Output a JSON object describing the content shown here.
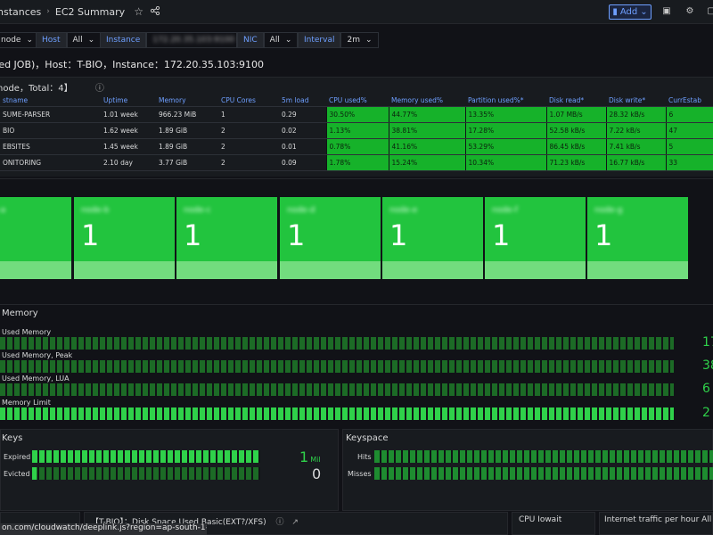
{
  "topbar": {
    "crumb_parent": "nstances",
    "crumb_current": "EC2 Summary",
    "add_label": "Add"
  },
  "variables": {
    "node_value": "node",
    "host_label": "Host",
    "host_value": "All",
    "instance_label": "Instance",
    "instance_value": "172.20.35.103:9100",
    "nic_label": "NIC",
    "nic_value": "All",
    "interval_label": "Interval",
    "interval_value": "2m"
  },
  "subtitle": "ted JOB)，Host：T-BIO，Instance：172.20.35.103:9100",
  "nodes_panel": {
    "title": "node，Total：4】",
    "columns": [
      "stname",
      "Uptime",
      "Memory",
      "CPU Cores",
      "5m load",
      "CPU used%",
      "Memory used%",
      "Partition used%*",
      "Disk read*",
      "Disk write*",
      "CurrEstab"
    ],
    "rows": [
      [
        "SUME-PARSER",
        "1.01 week",
        "966.23 MiB",
        "1",
        "0.29",
        "30.50%",
        "44.77%",
        "13.35%",
        "1.07 MB/s",
        "28.32 kB/s",
        "6"
      ],
      [
        "BIO",
        "1.62 week",
        "1.89 GiB",
        "2",
        "0.02",
        "1.13%",
        "38.81%",
        "17.28%",
        "52.58 kB/s",
        "7.22 kB/s",
        "47"
      ],
      [
        "EBSITES",
        "1.45 week",
        "1.89 GiB",
        "2",
        "0.01",
        "0.78%",
        "41.16%",
        "53.29%",
        "86.45 kB/s",
        "7.41 kB/s",
        "5"
      ],
      [
        "ONITORING",
        "2.10 day",
        "3.77 GiB",
        "2",
        "0.09",
        "1.78%",
        "15.24%",
        "10.34%",
        "71.23 kB/s",
        "16.77 kB/s",
        "33"
      ]
    ]
  },
  "tiles": [
    {
      "name": "node-a",
      "value": "1"
    },
    {
      "name": "node-b",
      "value": "1"
    },
    {
      "name": "node-c",
      "value": "1"
    },
    {
      "name": "node-d",
      "value": "1"
    },
    {
      "name": "node-e",
      "value": "1"
    },
    {
      "name": "node-f",
      "value": "1"
    },
    {
      "name": "node-g",
      "value": "1"
    }
  ],
  "memory_panel": {
    "title": "Memory",
    "bars": [
      {
        "label": "Used Memory",
        "value": "17",
        "fill": 0.0
      },
      {
        "label": "Used Memory, Peak",
        "value": "38",
        "fill": 0.0
      },
      {
        "label": "Used Memory, LUA",
        "value": "6",
        "fill": 0.0
      },
      {
        "label": "Memory Limit",
        "value": "2",
        "fill": 1.0
      }
    ]
  },
  "keys_panel": {
    "title": "Keys",
    "rows": [
      {
        "label": "Expired",
        "value": "1",
        "unit": "Mil",
        "fill": 1.0
      },
      {
        "label": "Evicted",
        "value": "0",
        "unit": "",
        "fill": 0.02
      }
    ]
  },
  "keyspace_panel": {
    "title": "Keyspace",
    "rows": [
      {
        "label": "Hits",
        "fill": 1.0
      },
      {
        "label": "Misses",
        "fill": 1.0
      }
    ]
  },
  "bottom": {
    "disk_title": "【T-BIO】：Disk Space Used Basic(EXT?/XFS)",
    "cpu_iowait_title": "CPU Iowait",
    "traffic_title": "Internet traffic per hour All",
    "url_hint": "on.com/cloudwatch/deeplink.js?region=ap-south-1#..."
  },
  "colors": {
    "accent": "#6e9fff",
    "ok_green": "#16b22a",
    "tile_green": "#22c43e"
  }
}
